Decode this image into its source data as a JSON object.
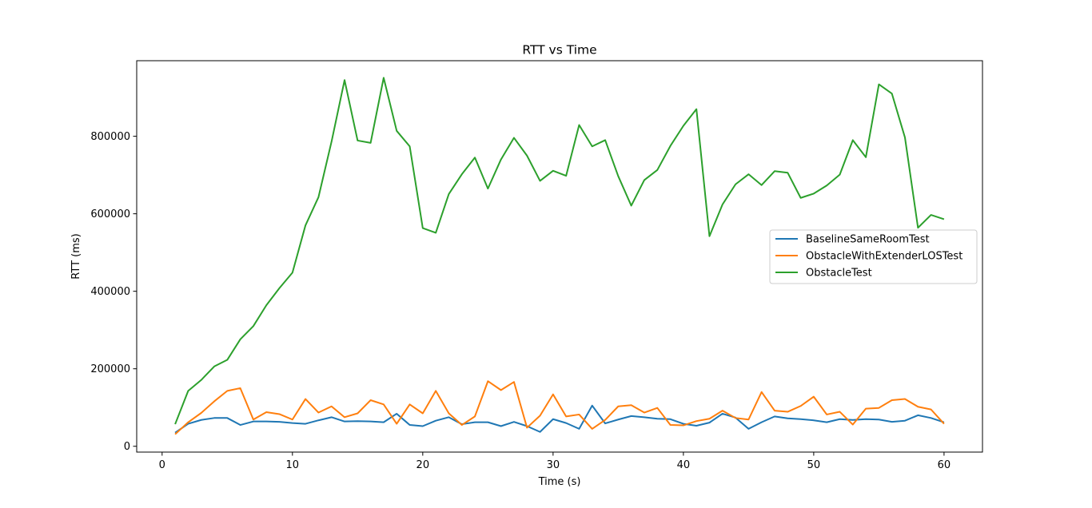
{
  "chart_data": {
    "type": "line",
    "title": "RTT vs Time",
    "xlabel": "Time (s)",
    "ylabel": "RTT (ms)",
    "xlim": [
      -1.95,
      62.95
    ],
    "ylim": [
      -15000,
      995000
    ],
    "xticks": [
      0,
      10,
      20,
      30,
      40,
      50,
      60
    ],
    "yticks": [
      0,
      200000,
      400000,
      600000,
      800000
    ],
    "grid": false,
    "legend_position": "center-right",
    "x": [
      1,
      2,
      3,
      4,
      5,
      6,
      7,
      8,
      9,
      10,
      11,
      12,
      13,
      14,
      15,
      16,
      17,
      18,
      19,
      20,
      21,
      22,
      23,
      24,
      25,
      26,
      27,
      28,
      29,
      30,
      31,
      32,
      33,
      34,
      35,
      36,
      37,
      38,
      39,
      40,
      41,
      42,
      43,
      44,
      45,
      46,
      47,
      48,
      49,
      50,
      51,
      52,
      53,
      54,
      55,
      56,
      57,
      58,
      59,
      60
    ],
    "series": [
      {
        "name": "BaselineSameRoomTest",
        "color": "#1f77b4",
        "values": [
          35000,
          58000,
          68000,
          73000,
          73000,
          55000,
          64000,
          64000,
          63000,
          60000,
          58000,
          67000,
          75000,
          64000,
          65000,
          64000,
          62000,
          84000,
          55000,
          52000,
          66000,
          75000,
          57000,
          62000,
          62000,
          52000,
          63000,
          52000,
          37000,
          70000,
          60000,
          45000,
          105000,
          59000,
          69000,
          78000,
          75000,
          71000,
          70000,
          58000,
          53000,
          61000,
          84000,
          74000,
          45000,
          62000,
          77000,
          72000,
          70000,
          67000,
          62000,
          70000,
          68000,
          70000,
          69000,
          63000,
          66000,
          80000,
          73000,
          62000
        ]
      },
      {
        "name": "ObstacleWithExtenderLOSTest",
        "color": "#ff7f0e",
        "values": [
          31000,
          62000,
          86000,
          116000,
          143000,
          150000,
          69000,
          88000,
          83000,
          69000,
          122000,
          87000,
          103000,
          75000,
          85000,
          119000,
          108000,
          58000,
          108000,
          85000,
          143000,
          85000,
          55000,
          77000,
          168000,
          145000,
          166000,
          48000,
          79000,
          134000,
          77000,
          82000,
          45000,
          68000,
          103000,
          106000,
          87000,
          99000,
          55000,
          54000,
          65000,
          71000,
          92000,
          73000,
          69000,
          140000,
          92000,
          89000,
          104000,
          128000,
          82000,
          89000,
          56000,
          97000,
          99000,
          119000,
          122000,
          102000,
          95000,
          58000
        ]
      },
      {
        "name": "ObstacleTest",
        "color": "#2ca02c",
        "values": [
          57000,
          143000,
          171000,
          206000,
          223000,
          276000,
          310000,
          364000,
          408000,
          448000,
          570000,
          643000,
          786000,
          945000,
          789000,
          783000,
          951000,
          814000,
          774000,
          563000,
          551000,
          651000,
          702000,
          745000,
          665000,
          740000,
          796000,
          750000,
          685000,
          711000,
          698000,
          829000,
          774000,
          790000,
          697000,
          621000,
          687000,
          713000,
          775000,
          827000,
          870000,
          542000,
          624000,
          676000,
          702000,
          674000,
          710000,
          706000,
          641000,
          652000,
          673000,
          701000,
          790000,
          746000,
          934000,
          910000,
          797000,
          564000,
          597000,
          586000
        ]
      }
    ]
  }
}
